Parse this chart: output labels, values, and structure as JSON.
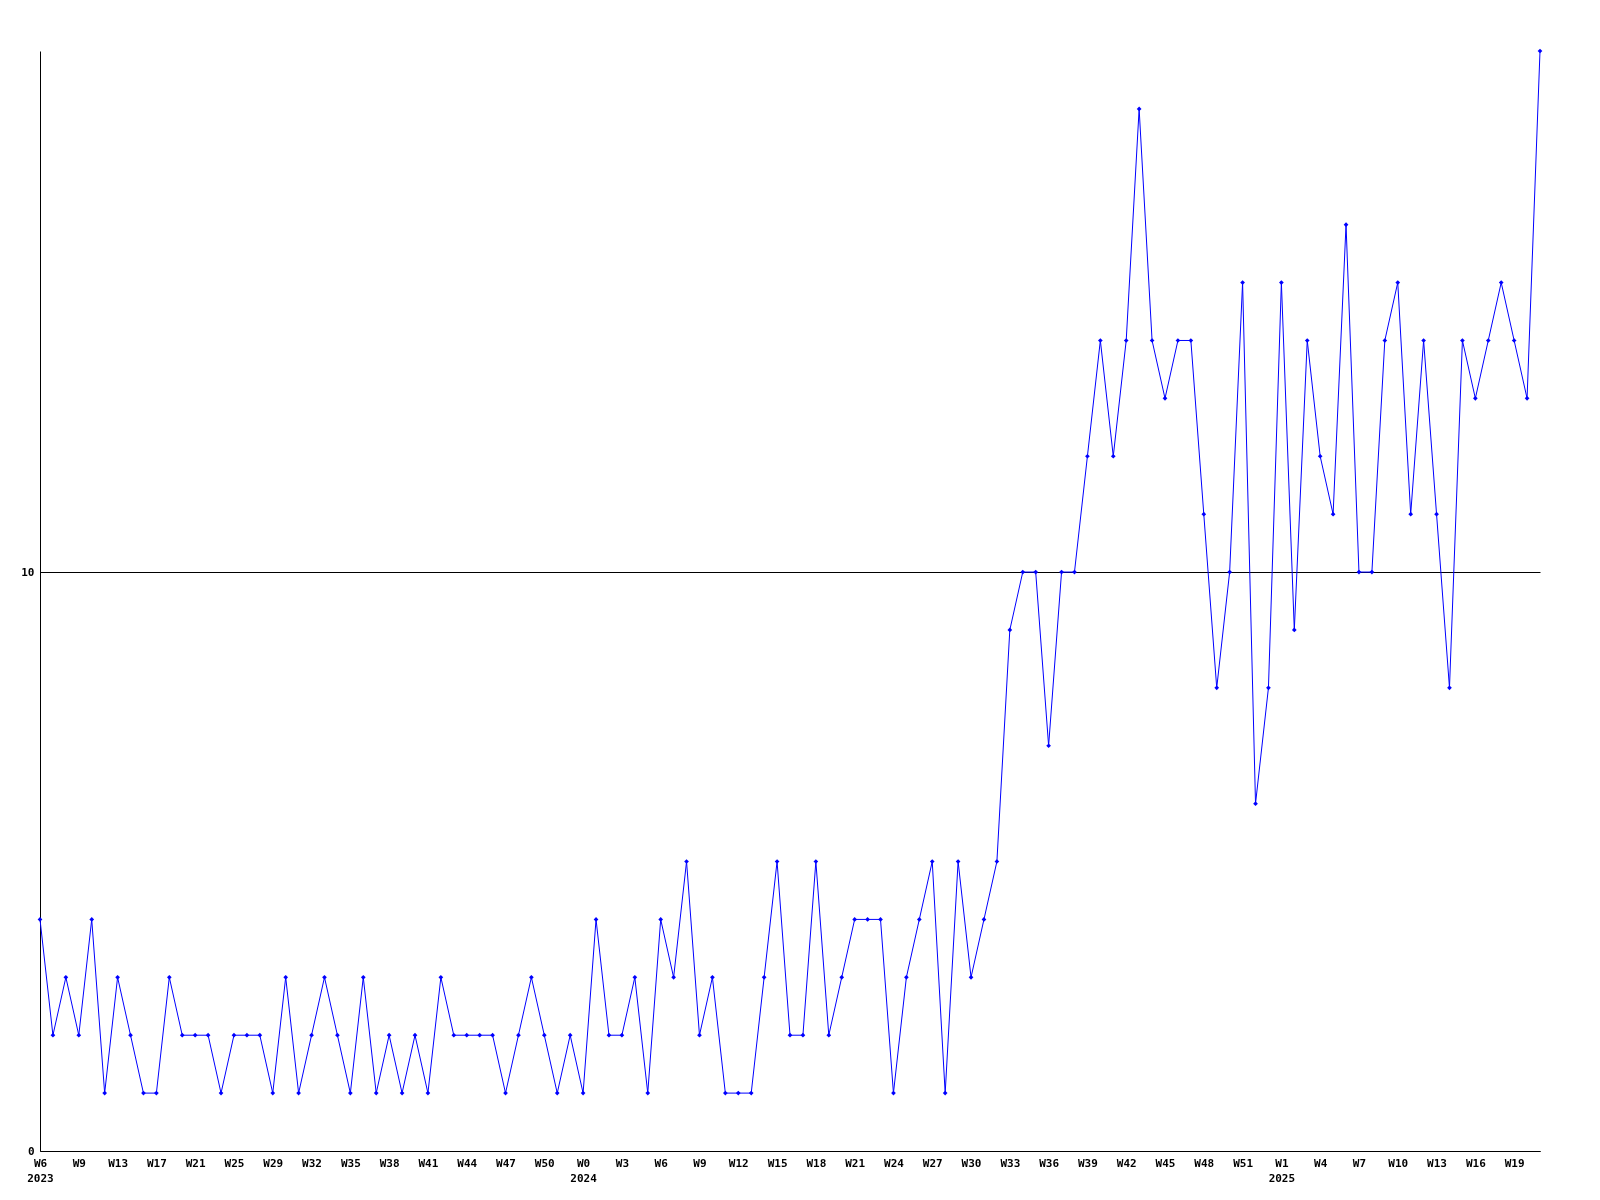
{
  "chart_data": {
    "type": "line",
    "categories": [
      "W6\n2023",
      null,
      null,
      "W9",
      null,
      null,
      "W13",
      null,
      null,
      "W17",
      null,
      null,
      "W21",
      null,
      null,
      "W25",
      null,
      null,
      "W29",
      null,
      null,
      "W32",
      null,
      null,
      "W35",
      null,
      null,
      "W38",
      null,
      null,
      "W41",
      null,
      null,
      "W44",
      null,
      null,
      "W47",
      null,
      null,
      "W50",
      null,
      null,
      "W0\n2024",
      null,
      null,
      "W3",
      null,
      null,
      "W6",
      null,
      null,
      "W9",
      null,
      null,
      "W12",
      null,
      null,
      "W15",
      null,
      null,
      "W18",
      null,
      null,
      "W21",
      null,
      null,
      "W24",
      null,
      null,
      "W27",
      null,
      null,
      "W30",
      null,
      null,
      "W33",
      null,
      null,
      "W36",
      null,
      null,
      "W39",
      null,
      null,
      "W42",
      null,
      null,
      "W45",
      null,
      null,
      "W48",
      null,
      null,
      "W51",
      null,
      null,
      "W1\n2025",
      null,
      null,
      "W4",
      null,
      null,
      "W7",
      null,
      null,
      "W10",
      null,
      null,
      "W13",
      null,
      null,
      "W16",
      null,
      null,
      "W19",
      null,
      null
    ],
    "series": [
      {
        "color": "#0000ff",
        "values": [
          4,
          2,
          3,
          2,
          4,
          1,
          3,
          2,
          1,
          1,
          3,
          2,
          2,
          2,
          1,
          2,
          2,
          2,
          1,
          3,
          1,
          2,
          3,
          2,
          1,
          3,
          1,
          2,
          1,
          2,
          1,
          3,
          2,
          2,
          2,
          2,
          1,
          2,
          3,
          2,
          1,
          2,
          1,
          4,
          2,
          2,
          3,
          1,
          4,
          3,
          5,
          2,
          3,
          1,
          1,
          1,
          3,
          5,
          2,
          2,
          5,
          2,
          3,
          4,
          4,
          4,
          1,
          3,
          4,
          5,
          1,
          5,
          3,
          4,
          5,
          9,
          10,
          10,
          7,
          10,
          10,
          12,
          14,
          12,
          14,
          18,
          14,
          13,
          14,
          14,
          11,
          8,
          10,
          15,
          6,
          8,
          15,
          9,
          14,
          12,
          11,
          16,
          10,
          10,
          14,
          15,
          11,
          14,
          11,
          8,
          14,
          13,
          14,
          15,
          14,
          13,
          19
        ]
      }
    ],
    "ylim": [
      0,
      19
    ],
    "yticks": [
      0,
      10
    ],
    "grid": "y",
    "marker": "diamond",
    "line_style": "solid"
  }
}
